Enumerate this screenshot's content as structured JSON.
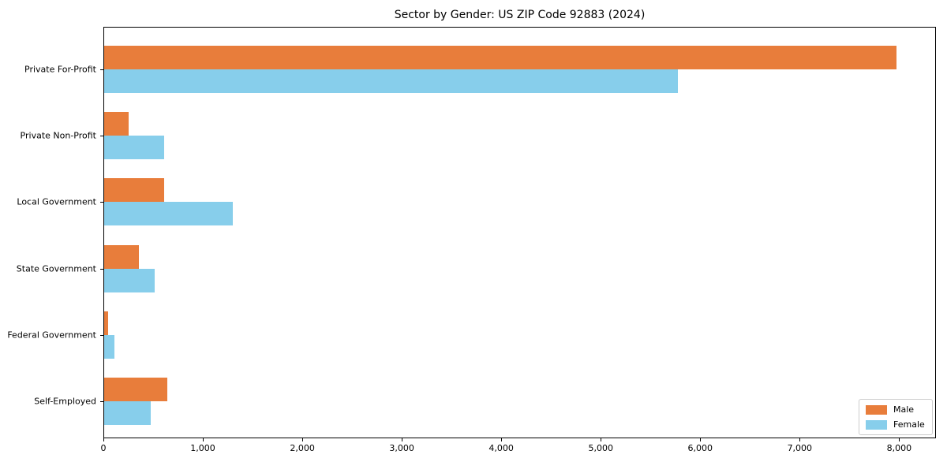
{
  "title": "Sector by Gender: US ZIP Code 92883 (2024)",
  "chart_data": {
    "type": "bar",
    "orientation": "horizontal",
    "title": "Sector by Gender: US ZIP Code 92883 (2024)",
    "categories": [
      "Private For-Profit",
      "Private Non-Profit",
      "Local Government",
      "State Government",
      "Federal Government",
      "Self-Employed"
    ],
    "series": [
      {
        "name": "Male",
        "color": "#e87d3b",
        "values": [
          7970,
          255,
          610,
          355,
          48,
          640
        ]
      },
      {
        "name": "Female",
        "color": "#87ceeb",
        "values": [
          5775,
          610,
          1300,
          515,
          110,
          475
        ]
      }
    ],
    "xlabel": "",
    "ylabel": "",
    "xlim": [
      0,
      8370
    ],
    "xticks": [
      0,
      1000,
      2000,
      3000,
      4000,
      5000,
      6000,
      7000,
      8000
    ],
    "xtick_labels": [
      "0",
      "1,000",
      "2,000",
      "3,000",
      "4,000",
      "5,000",
      "6,000",
      "7,000",
      "8,000"
    ],
    "grid": false,
    "legend_position": "lower right",
    "axis_color": "#000000",
    "background_color": "#ffffff"
  }
}
